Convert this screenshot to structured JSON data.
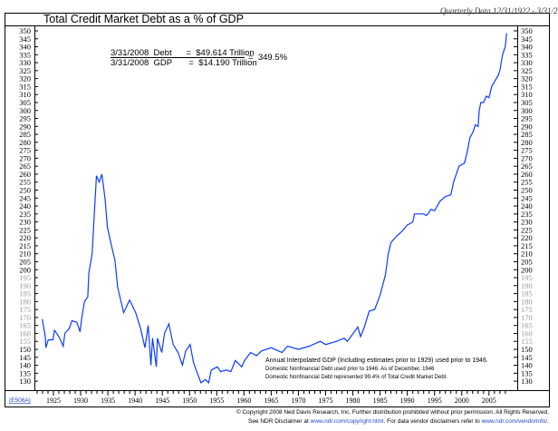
{
  "chart_data": {
    "type": "line",
    "title": "Total Credit Market Debt as a % of GDP",
    "subtitle": "Quarterly Data 12/31/1922 - 3/31/2008",
    "xlabel": "",
    "ylabel": "",
    "xlim": [
      1921,
      2009
    ],
    "ylim": [
      130,
      350
    ],
    "y_ticks": [
      130,
      135,
      140,
      145,
      150,
      155,
      160,
      165,
      170,
      175,
      180,
      185,
      190,
      195,
      200,
      205,
      210,
      215,
      220,
      225,
      230,
      235,
      240,
      245,
      250,
      255,
      260,
      265,
      270,
      275,
      280,
      285,
      290,
      295,
      300,
      305,
      310,
      315,
      320,
      325,
      330,
      335,
      340,
      345,
      350
    ],
    "x_ticks": [
      1925,
      1930,
      1935,
      1940,
      1945,
      1950,
      1955,
      1960,
      1965,
      1970,
      1975,
      1980,
      1985,
      1990,
      1995,
      2000,
      2005
    ],
    "grid": false,
    "line_color": "#0a3cff",
    "series": [
      {
        "x": [
          1922.95,
          1923.5,
          1923.6,
          1924.05,
          1924.9,
          1925.2,
          1926.0,
          1926.8,
          1927.1,
          1927.9,
          1928.4,
          1929.3,
          1929.9,
          1930.2,
          1930.7,
          1931.3,
          1931.5,
          1932.1,
          1932.5,
          1932.9,
          1933.4,
          1933.9,
          1934.5,
          1934.9,
          1935.6,
          1936.3,
          1936.8,
          1937.9,
          1939.0,
          1940.1,
          1941.0,
          1941.8,
          1942.4,
          1942.9,
          1943.2,
          1943.9,
          1944.1,
          1944.9,
          1945.4,
          1946.2,
          1947.0,
          1947.9,
          1948.7,
          1949.3,
          1950.1,
          1950.7,
          1951.2,
          1952.1,
          1952.9,
          1953.5,
          1954.0,
          1955.1,
          1955.7,
          1956.8,
          1957.6,
          1958.4,
          1959.6,
          1960.1,
          1961.2,
          1962.3,
          1963.2,
          1965,
          1967,
          1968,
          1970,
          1972,
          1974,
          1975,
          1977,
          1978.4,
          1979,
          1980.9,
          1981.4,
          1982,
          1983,
          1984,
          1985,
          1986,
          1986.5,
          1987,
          1988,
          1989,
          1990,
          1990.5,
          1991,
          1991.3,
          1992,
          1993,
          1993.5,
          1994,
          1994.3,
          1995,
          1996,
          1997,
          1998,
          1998.5,
          1999,
          1999.5,
          2000,
          2000.5,
          2001,
          2001.5,
          2002,
          2002.5,
          2003,
          2003.2,
          2003.5,
          2004,
          2004.5,
          2005,
          2005.5,
          2006,
          2006.7,
          2007,
          2007.5,
          2007.7,
          2008.0,
          2008.25
        ],
        "y": [
          169,
          158,
          151,
          156,
          156,
          162,
          158,
          152,
          160,
          163,
          168,
          167,
          161,
          170,
          180,
          183,
          198,
          210,
          235,
          259,
          255,
          260,
          244,
          227,
          216,
          206,
          189,
          173,
          181,
          173,
          163,
          151,
          165,
          140,
          157,
          139,
          157,
          148,
          160,
          166,
          153,
          148,
          140,
          149,
          153,
          142,
          137,
          129,
          131,
          129,
          137,
          139,
          136,
          137,
          136,
          143,
          139,
          143,
          148,
          146,
          149,
          151,
          148,
          152,
          150,
          152,
          155,
          153,
          155,
          157,
          155,
          164,
          158,
          163,
          174,
          175,
          184,
          197,
          210,
          217,
          221,
          224,
          228,
          229,
          230,
          235,
          235,
          235,
          234,
          236,
          238,
          237,
          243,
          246,
          247,
          255,
          260,
          265,
          266,
          267,
          274,
          283,
          286,
          291,
          290,
          300,
          305,
          305,
          309,
          308,
          315,
          318,
          322,
          325,
          335,
          337,
          340,
          348.5
        ]
      }
    ],
    "annotations": {
      "debt_line": "3/31/2008  Debt      =  $49.614 Trillion",
      "gdp_line": "3/31/2008  GDP       =  $14.190 Trillion",
      "ratio": "=  349.5%",
      "note_1": "Annual Interpolated GDP (Including estimates prior to 1929) used prior to 1946.",
      "note_2": "Domestic Nonfinancial Debt used prior to 1946. As of December, 1946",
      "note_3": "Domestic Nonfinancial Debt represented 99.4% of Total Credit Market Debt."
    }
  },
  "footer": {
    "chart_code": "(E506A)",
    "copyright": "© Copyright 2008 Ned Davis Research, Inc.  Further distribution prohibited without prior permission.  All Rights Reserved.",
    "disclaimer_prefix": "See NDR Disclaimer at ",
    "disclaimer_link": "www.ndr.com/copyright.html",
    "disclaimer_middle": ". For data vendor disclaimers refer to ",
    "vendor_link": "www.ndr.com/vendorinfo/",
    "disclaimer_suffix": "."
  }
}
